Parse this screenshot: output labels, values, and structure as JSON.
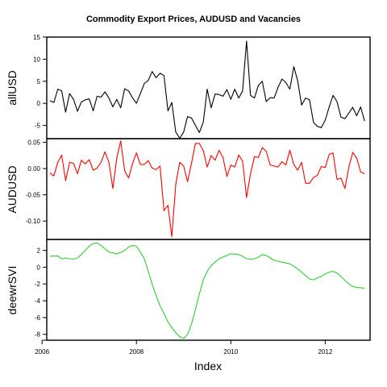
{
  "chart_data": {
    "type": "line",
    "title": "Commodity Export Prices, AUDUSD and Vacancies",
    "xlabel": "Index",
    "x_start": 2006.1667,
    "x_step": 0.0833333,
    "xlim": [
      2006.1,
      2012.95
    ],
    "x_ticks": [
      2006,
      2008,
      2010,
      2012
    ],
    "x_tick_labels": [
      "2006",
      "2008",
      "2010",
      "2012"
    ],
    "grid": false,
    "legend": "none",
    "panels": [
      {
        "ylabel": "allUSD",
        "color": "#000000",
        "ylim": [
          -8,
          15
        ],
        "y_ticks": [
          15,
          10,
          5,
          0,
          -5
        ],
        "y_tick_labels": [
          "15",
          "10",
          "5",
          "0",
          "-5"
        ],
        "values": [
          0.6,
          0.2,
          3.2,
          2.8,
          -2.0,
          2.2,
          0.9,
          -1.8,
          0.3,
          0.8,
          1.0,
          -1.7,
          1.6,
          1.4,
          2.6,
          1.2,
          -0.8,
          0.9,
          -1.0,
          3.3,
          2.8,
          1.3,
          0.0,
          2.2,
          4.5,
          5.2,
          7.2,
          5.8,
          6.8,
          6.3,
          -1.7,
          0.2,
          -6.5,
          -7.9,
          -6.5,
          -3.0,
          -3.3,
          -5.0,
          -6.6,
          -4.2,
          3.2,
          -1.0,
          2.1,
          2.0,
          1.6,
          3.1,
          0.9,
          3.2,
          1.2,
          2.8,
          14.1,
          1.8,
          1.2,
          4.1,
          5.0,
          0.4,
          1.3,
          1.2,
          3.6,
          5.5,
          4.7,
          3.2,
          8.3,
          5.1,
          -0.4,
          1.2,
          0.8,
          -4.3,
          -5.2,
          -5.5,
          -3.8,
          -0.8,
          1.8,
          0.4,
          -3.1,
          -3.5,
          -2.2,
          -0.9,
          -2.8,
          -0.8,
          -4.0
        ]
      },
      {
        "ylabel": "AUDUSD",
        "color": "#ff0000",
        "ylim": [
          -0.135,
          0.057
        ],
        "y_ticks": [
          0.05,
          0.0,
          -0.05,
          -0.1
        ],
        "y_tick_labels": [
          "0.05",
          "0.00",
          "-0.05",
          "-0.10"
        ],
        "values": [
          -0.008,
          -0.014,
          0.012,
          0.026,
          -0.023,
          0.012,
          0.01,
          -0.01,
          0.016,
          0.009,
          0.017,
          -0.003,
          0.001,
          0.012,
          0.032,
          0.012,
          -0.038,
          0.02,
          0.053,
          -0.004,
          -0.018,
          0.009,
          0.03,
          0.008,
          0.008,
          0.015,
          0.001,
          -0.002,
          0.005,
          -0.08,
          -0.07,
          -0.13,
          -0.03,
          0.012,
          0.005,
          -0.025,
          0.01,
          0.048,
          0.048,
          0.034,
          0.003,
          0.025,
          0.016,
          0.035,
          0.021,
          -0.015,
          0.007,
          0.003,
          0.026,
          0.014,
          -0.055,
          -0.01,
          0.023,
          0.021,
          0.04,
          0.033,
          0.007,
          0.005,
          0.003,
          0.013,
          0.007,
          0.035,
          0.008,
          -0.003,
          0.012,
          -0.028,
          -0.028,
          -0.017,
          -0.013,
          0.004,
          0.002,
          0.027,
          0.03,
          -0.021,
          -0.018,
          -0.038,
          0.003,
          0.031,
          0.02,
          -0.006,
          -0.01
        ]
      },
      {
        "ylabel": "deewrSVI",
        "color": "#33cc33",
        "ylim": [
          -8.7,
          3.3
        ],
        "y_ticks": [
          2,
          0,
          -2,
          -4,
          -6,
          -8
        ],
        "y_tick_labels": [
          "2",
          "0",
          "-2",
          "-4",
          "-6",
          "-8"
        ],
        "values": [
          1.3,
          1.32,
          1.34,
          1.0,
          1.1,
          1.0,
          0.95,
          1.1,
          1.5,
          2.0,
          2.5,
          2.8,
          2.9,
          2.6,
          2.2,
          1.8,
          1.7,
          1.6,
          1.75,
          2.0,
          2.4,
          2.6,
          2.5,
          1.8,
          1.0,
          -0.5,
          -2.0,
          -3.4,
          -4.6,
          -5.5,
          -6.5,
          -7.2,
          -7.8,
          -8.3,
          -8.5,
          -8.0,
          -6.8,
          -5.0,
          -3.2,
          -1.5,
          -0.5,
          0.2,
          0.6,
          1.0,
          1.2,
          1.4,
          1.6,
          1.55,
          1.5,
          1.3,
          1.0,
          0.95,
          1.0,
          1.2,
          1.5,
          1.4,
          1.1,
          0.8,
          0.7,
          0.6,
          0.5,
          0.4,
          0.1,
          -0.2,
          -0.6,
          -1.0,
          -1.4,
          -1.5,
          -1.3,
          -1.1,
          -0.8,
          -0.6,
          -0.5,
          -0.7,
          -1.1,
          -1.6,
          -2.0,
          -2.3,
          -2.4,
          -2.45,
          -2.5
        ]
      }
    ]
  }
}
